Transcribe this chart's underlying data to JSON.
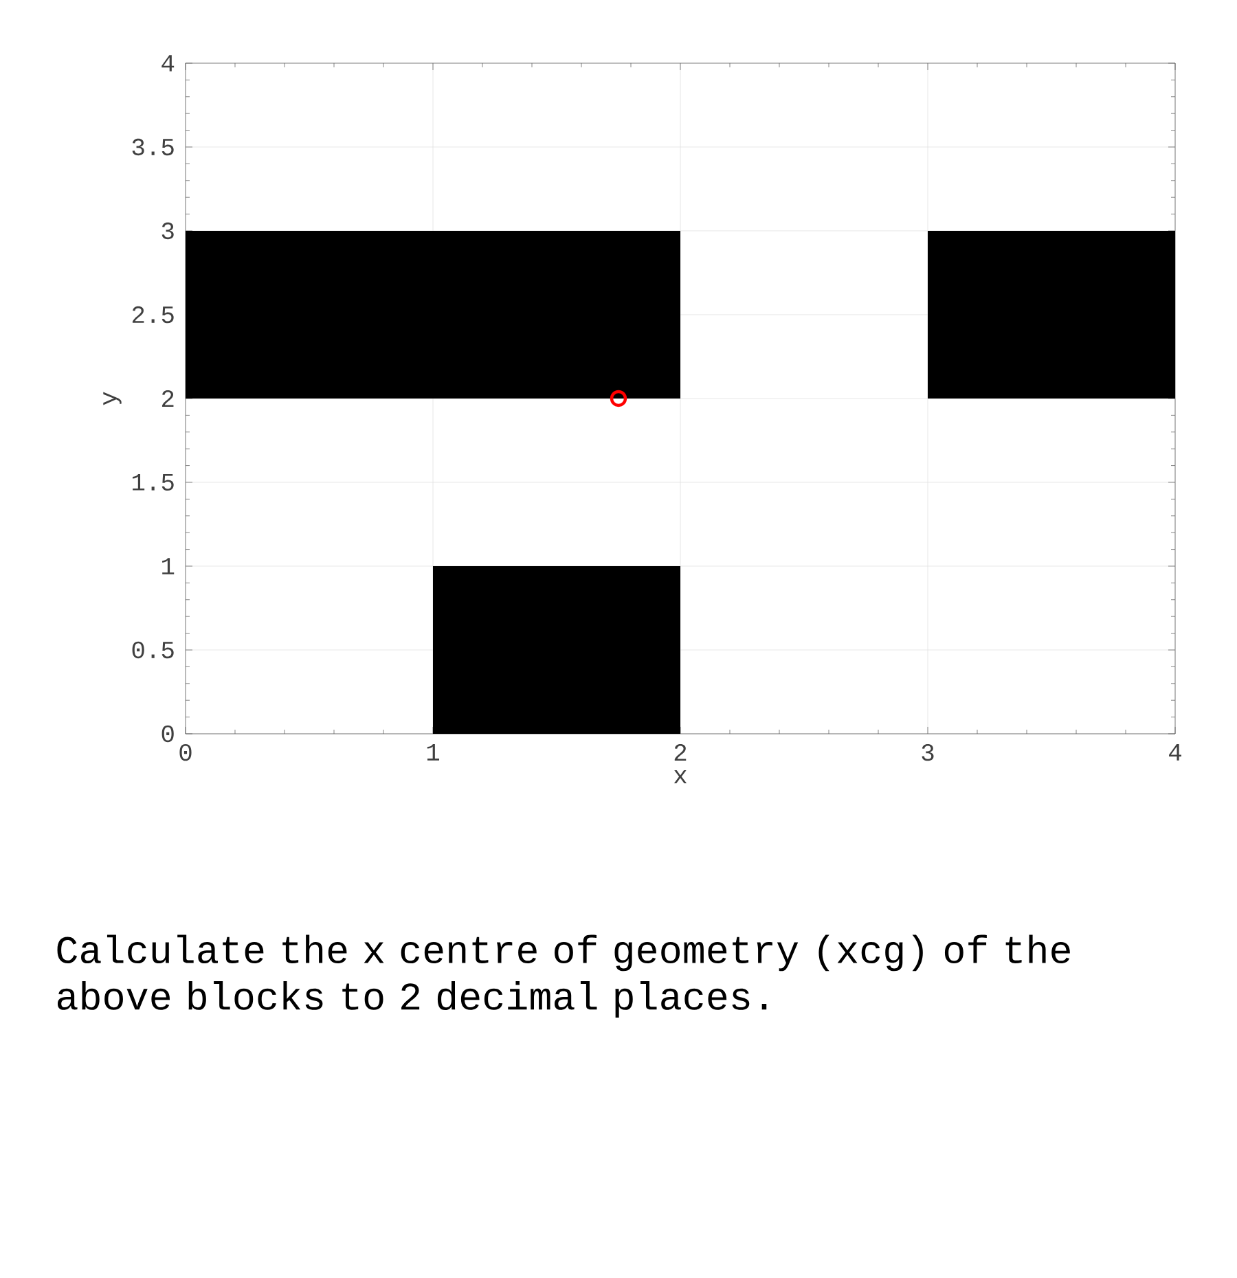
{
  "chart_data": {
    "type": "bar",
    "xlabel": "x",
    "ylabel": "y",
    "xlim": [
      0,
      4
    ],
    "ylim": [
      0,
      4
    ],
    "xticks": [
      0,
      1,
      2,
      3,
      4
    ],
    "yticks": [
      0,
      0.5,
      1,
      1.5,
      2,
      2.5,
      3,
      3.5,
      4
    ],
    "grid": true,
    "series": [
      {
        "color": "#000000",
        "x": [
          0.5,
          1.5,
          3.5
        ],
        "base": [
          2,
          2,
          2
        ],
        "values": [
          1,
          1,
          1
        ]
      },
      {
        "color": "#000000",
        "x": [
          1.5
        ],
        "base": [
          0
        ],
        "values": [
          1
        ]
      },
      {
        "type": "scatter",
        "color": "#ff0000",
        "marker": "circle",
        "x": [
          1.75
        ],
        "values": [
          2
        ]
      }
    ],
    "annotations": [
      "Calculate the x centre of geometry (xcg) of the above blocks to 2 decimal places."
    ]
  }
}
